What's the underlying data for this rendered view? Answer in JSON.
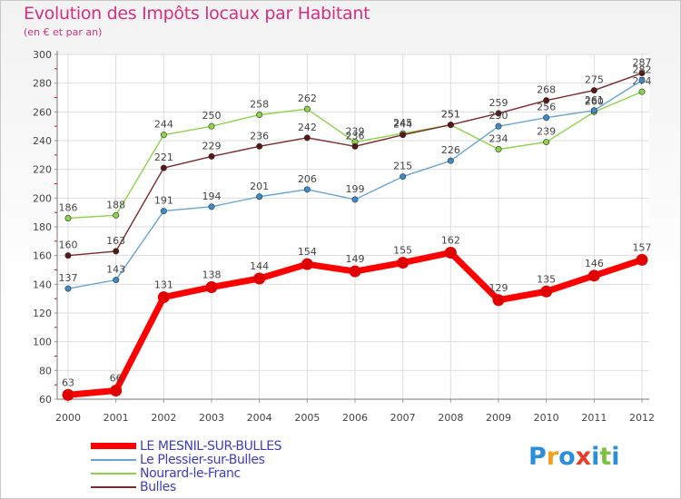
{
  "title": "Evolution des Impôts locaux par Habitant",
  "subtitle": "(en € et par an)",
  "logo_text": "Proxiti",
  "chart_data": {
    "type": "line",
    "x": [
      "2000",
      "2001",
      "2002",
      "2003",
      "2004",
      "2005",
      "2006",
      "2007",
      "2008",
      "2009",
      "2010",
      "2011",
      "2012"
    ],
    "ylim": [
      60,
      300
    ],
    "yticks": [
      60,
      80,
      100,
      120,
      140,
      160,
      180,
      200,
      220,
      240,
      260,
      280,
      300
    ],
    "grid": true,
    "legend_position": "bottom-left",
    "series": [
      {
        "name": "Nourard-le-Franc",
        "color": "#8ed24a",
        "marker_fill": "#8ed24a",
        "thick": false,
        "values": [
          186,
          188,
          244,
          250,
          258,
          262,
          239,
          245,
          251,
          234,
          239,
          260,
          274
        ]
      },
      {
        "name": "Bulles",
        "color": "#7a2a2a",
        "marker_fill": "#5a1515",
        "thick": false,
        "values": [
          160,
          163,
          221,
          229,
          236,
          242,
          236,
          244,
          251,
          259,
          268,
          275,
          287
        ]
      },
      {
        "name": "Le Plessier-sur-Bulles",
        "color": "#6aa5d2",
        "marker_fill": "#3e8ac8",
        "thick": false,
        "values": [
          137,
          143,
          191,
          194,
          201,
          206,
          199,
          215,
          226,
          250,
          256,
          261,
          282
        ]
      },
      {
        "name": "LE MESNIL-SUR-BULLES",
        "color": "#ff0000",
        "marker_fill": "#e00000",
        "thick": true,
        "values": [
          63,
          66,
          131,
          138,
          144,
          154,
          149,
          155,
          162,
          129,
          135,
          146,
          157
        ]
      }
    ],
    "legend_order": [
      "LE MESNIL-SUR-BULLES",
      "Le Plessier-sur-Bulles",
      "Nourard-le-Franc",
      "Bulles"
    ]
  }
}
